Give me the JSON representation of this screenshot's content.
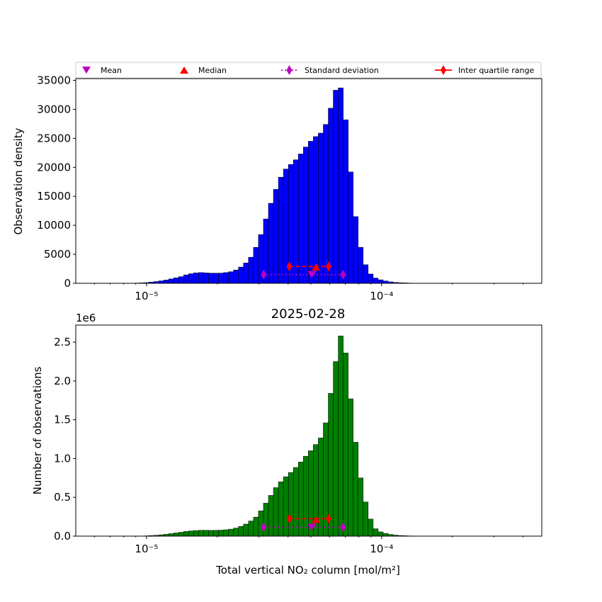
{
  "figure": {
    "title_bottom": "2025-02-28"
  },
  "legend": {
    "location": "above top panel, spanning full width",
    "entries": [
      {
        "label": "Mean",
        "marker": "triangle-down",
        "color": "#bf00bf",
        "line": "none"
      },
      {
        "label": "Median",
        "marker": "triangle-up",
        "color": "#ff0000",
        "line": "none"
      },
      {
        "label": "Standard deviation",
        "marker": "thin-diamond",
        "color": "#bf00bf",
        "line": "dotted"
      },
      {
        "label": "Inter quartile range",
        "marker": "thin-diamond",
        "color": "#ff0000",
        "line": "solid"
      }
    ]
  },
  "chart_data": [
    {
      "type": "bar",
      "title": "",
      "xlabel": "",
      "ylabel": "Observation density",
      "xscale": "log",
      "xlim": [
        5e-06,
        0.00048
      ],
      "ylim": [
        0,
        35300
      ],
      "yticks": [
        0,
        5000,
        10000,
        15000,
        20000,
        25000,
        30000,
        35000
      ],
      "ytick_labels": [
        "0",
        "5000",
        "10000",
        "15000",
        "20000",
        "25000",
        "30000",
        "35000"
      ],
      "xticks": [
        1e-05,
        0.0001
      ],
      "xtick_labels": [
        "10⁻⁵",
        "10⁻⁴"
      ],
      "offset_label": "",
      "bar_color": "#0000ff",
      "edge_color": "#000000",
      "bins": {
        "start": 8e-06,
        "end": 0.00015,
        "count": 60
      },
      "values": [
        10,
        20,
        40,
        70,
        120,
        200,
        300,
        420,
        560,
        750,
        950,
        1150,
        1450,
        1650,
        1800,
        1850,
        1800,
        1750,
        1750,
        1760,
        1850,
        2000,
        2300,
        2800,
        3500,
        4500,
        6200,
        8400,
        11100,
        13800,
        16200,
        18300,
        19700,
        20500,
        21300,
        22300,
        23500,
        24500,
        25300,
        25900,
        27400,
        30200,
        33300,
        33700,
        28200,
        19200,
        11500,
        6200,
        3200,
        1600,
        900,
        600,
        400,
        250,
        150,
        100,
        70,
        40,
        20,
        10
      ],
      "stats": {
        "mean": 5.05e-05,
        "median": 5.25e-05,
        "std_range": [
          3.15e-05,
          6.85e-05
        ],
        "iqr_range": [
          4.05e-05,
          5.95e-05
        ],
        "mean_y": 1500,
        "median_y": 2800,
        "std_y": 1500,
        "iqr_y": 2900
      },
      "grid": false
    },
    {
      "type": "bar",
      "title": "2025-02-28",
      "xlabel": "Total vertical NO₂ column [mol/m²]",
      "ylabel": "Number of observations",
      "xscale": "log",
      "xlim": [
        5e-06,
        0.00048
      ],
      "ylim": [
        0,
        2.72
      ],
      "yticks": [
        0.0,
        0.5,
        1.0,
        1.5,
        2.0,
        2.5
      ],
      "ytick_labels": [
        "0.0",
        "0.5",
        "1.0",
        "1.5",
        "2.0",
        "2.5"
      ],
      "xticks": [
        1e-05,
        0.0001
      ],
      "xtick_labels": [
        "10⁻⁵",
        "10⁻⁴"
      ],
      "offset_label": "1e6",
      "bar_color": "#008000",
      "edge_color": "#000000",
      "bins": {
        "start": 8e-06,
        "end": 0.00015,
        "count": 60
      },
      "values": [
        0.0,
        0.0,
        0.001,
        0.002,
        0.004,
        0.007,
        0.011,
        0.017,
        0.024,
        0.032,
        0.041,
        0.05,
        0.06,
        0.067,
        0.072,
        0.075,
        0.075,
        0.074,
        0.075,
        0.077,
        0.082,
        0.09,
        0.104,
        0.125,
        0.155,
        0.195,
        0.245,
        0.325,
        0.425,
        0.525,
        0.625,
        0.7,
        0.765,
        0.82,
        0.885,
        0.955,
        1.03,
        1.1,
        1.18,
        1.265,
        1.46,
        1.84,
        2.25,
        2.58,
        2.36,
        1.77,
        1.21,
        0.75,
        0.44,
        0.22,
        0.095,
        0.055,
        0.035,
        0.022,
        0.013,
        0.008,
        0.005,
        0.003,
        0.002,
        0.001
      ],
      "stats": {
        "mean": 5.05e-05,
        "median": 5.25e-05,
        "std_range": [
          3.15e-05,
          6.85e-05
        ],
        "iqr_range": [
          4.05e-05,
          5.95e-05
        ],
        "mean_y": 0.115,
        "median_y": 0.215,
        "std_y": 0.115,
        "iqr_y": 0.225
      },
      "grid": false
    }
  ]
}
